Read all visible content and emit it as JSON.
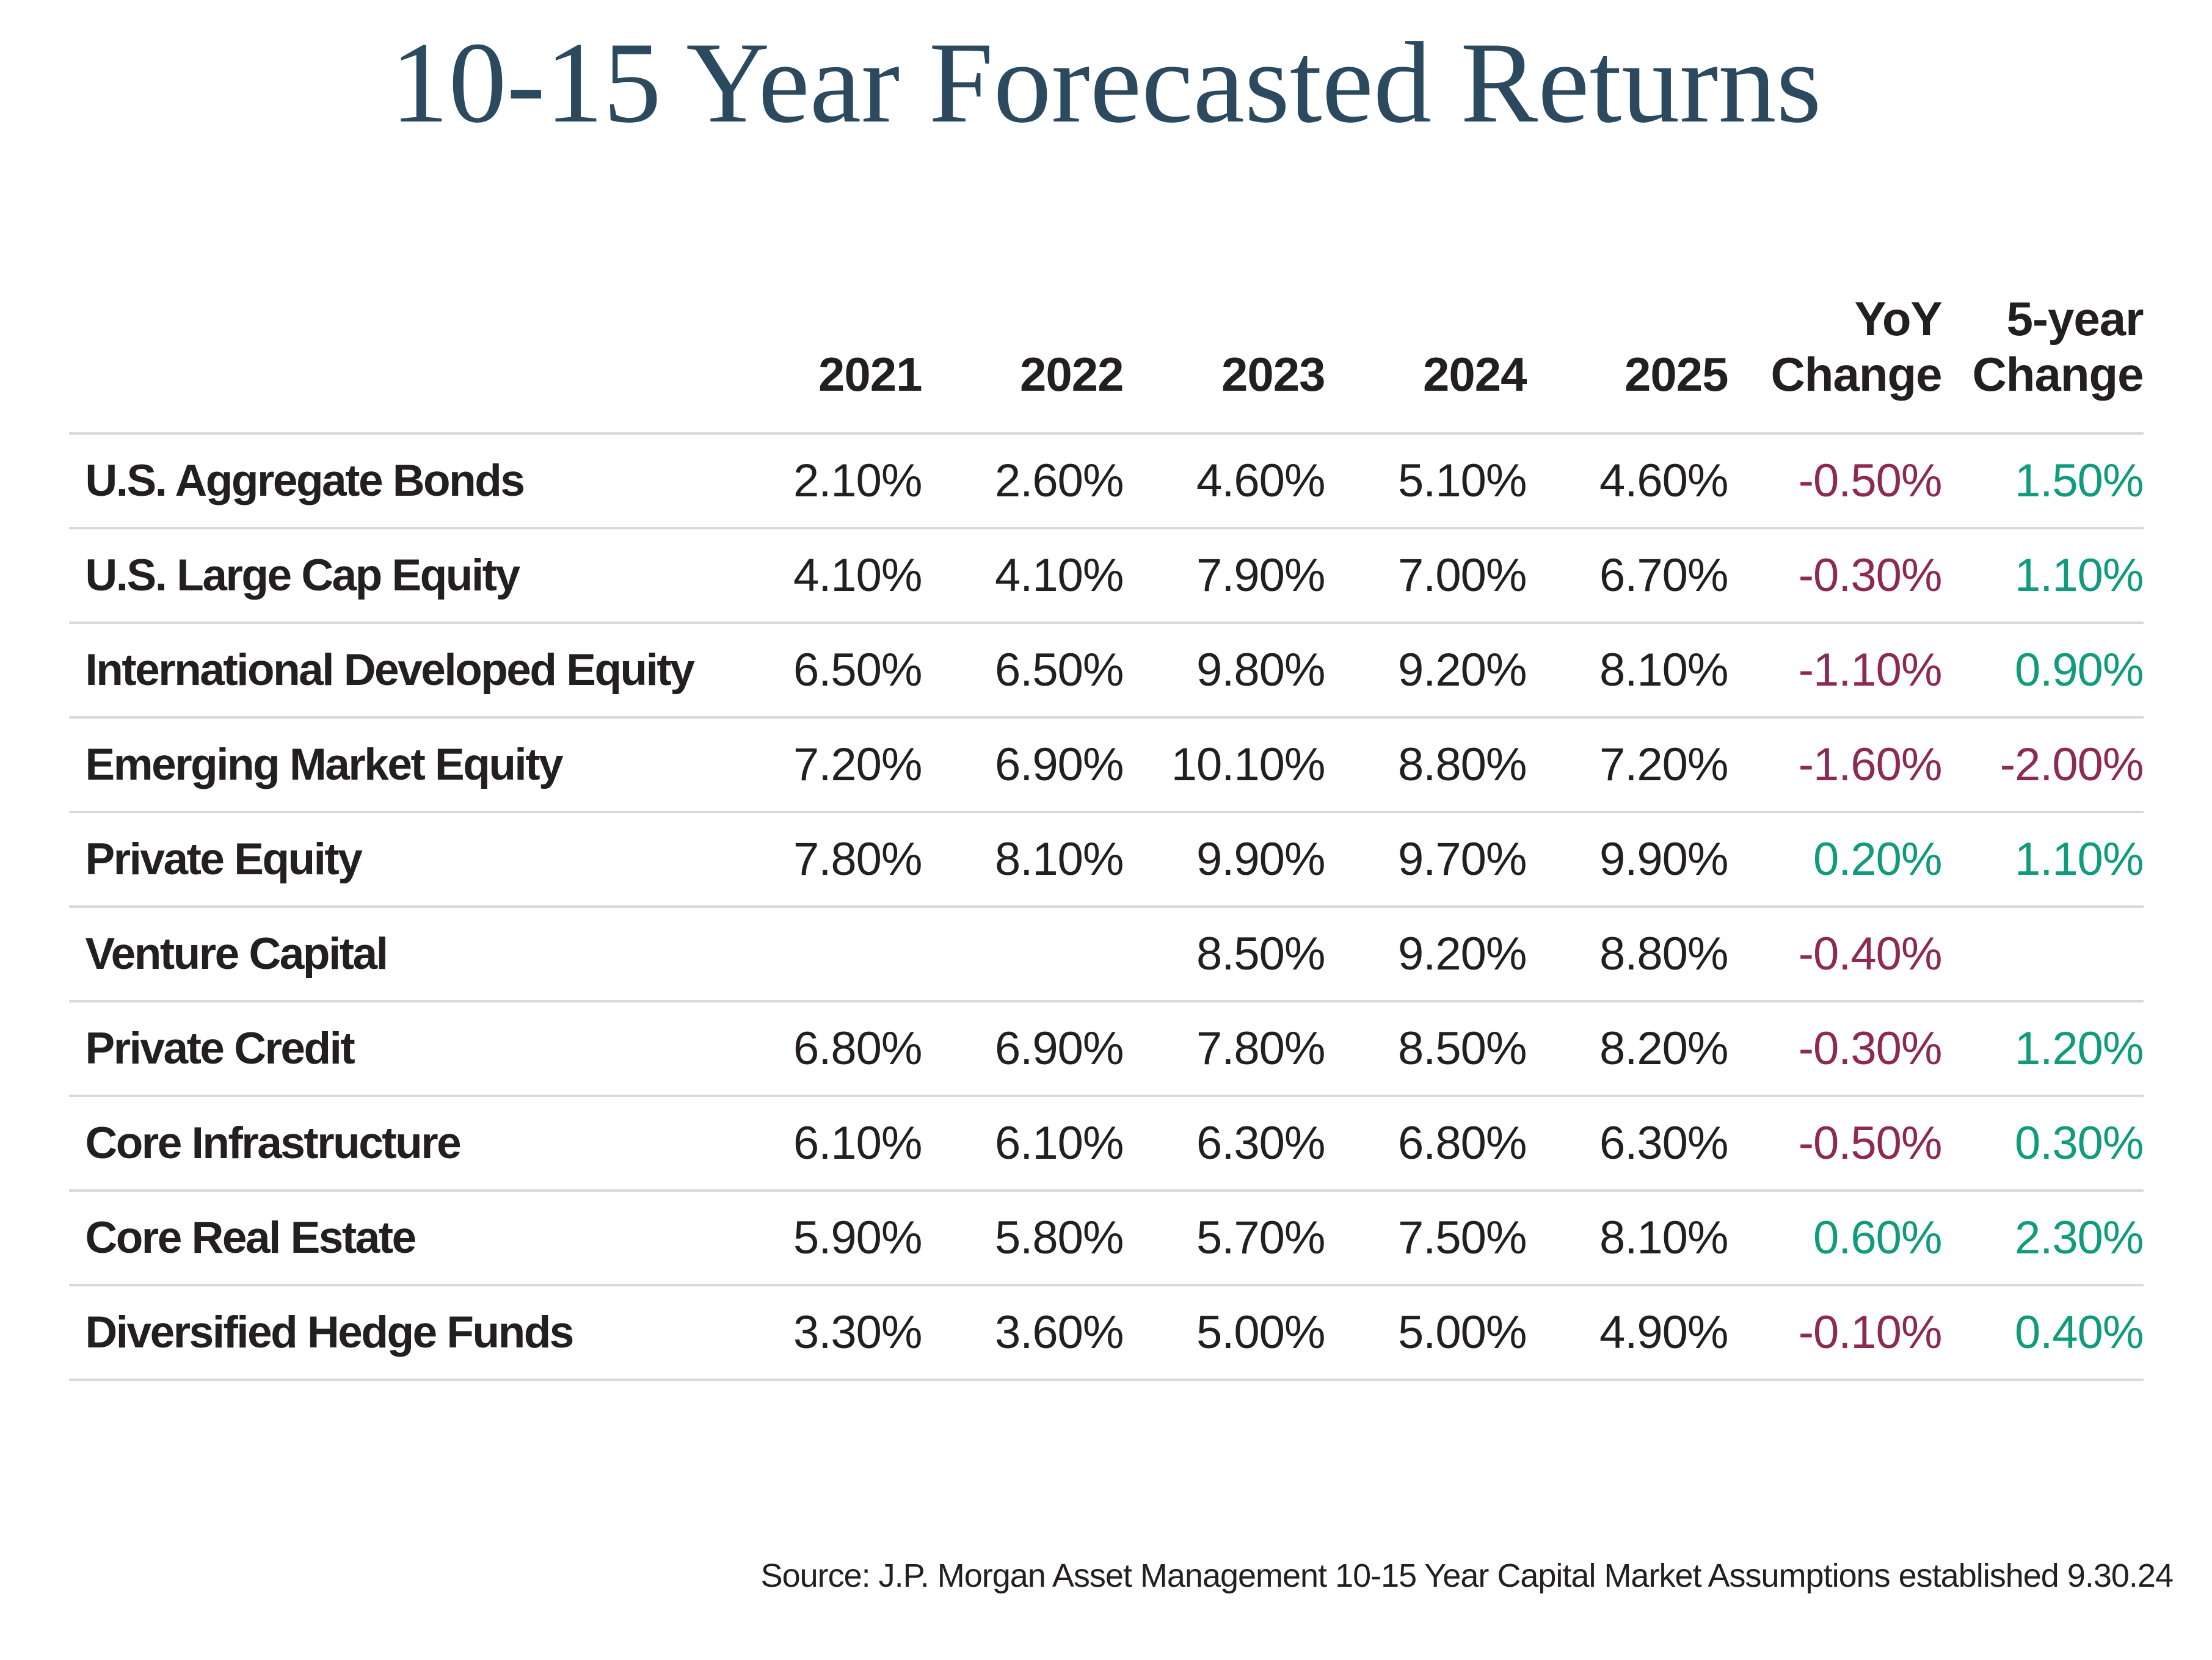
{
  "title": "10-15 Year Forecasted Returns",
  "header": {
    "asset": "",
    "yoy_line1": "YoY",
    "yoy_line2": "Change",
    "fiveyear_line1": "5-year",
    "fiveyear_line2": "Change"
  },
  "source": "Source: J.P. Morgan Asset Management 10-15 Year Capital Market Assumptions established 9.30.24",
  "colors": {
    "title": "#2c4a5f",
    "text": "#231f20",
    "positive": "#0f9b7c",
    "negative": "#8d2a54",
    "divider": "#d9d9d9"
  },
  "chart_data": {
    "type": "table",
    "title": "10-15 Year Forecasted Returns",
    "columns": [
      "2021",
      "2022",
      "2023",
      "2024",
      "2025",
      "YoY Change",
      "5-year Change"
    ],
    "rows": [
      {
        "label": "U.S. Aggregate Bonds",
        "values": [
          "2.10%",
          "2.60%",
          "4.60%",
          "5.10%",
          "4.60%",
          "-0.50%",
          "1.50%"
        ]
      },
      {
        "label": "U.S. Large Cap Equity",
        "values": [
          "4.10%",
          "4.10%",
          "7.90%",
          "7.00%",
          "6.70%",
          "-0.30%",
          "1.10%"
        ]
      },
      {
        "label": "International Developed Equity",
        "values": [
          "6.50%",
          "6.50%",
          "9.80%",
          "9.20%",
          "8.10%",
          "-1.10%",
          "0.90%"
        ]
      },
      {
        "label": "Emerging Market Equity",
        "values": [
          "7.20%",
          "6.90%",
          "10.10%",
          "8.80%",
          "7.20%",
          "-1.60%",
          "-2.00%"
        ]
      },
      {
        "label": "Private Equity",
        "values": [
          "7.80%",
          "8.10%",
          "9.90%",
          "9.70%",
          "9.90%",
          "0.20%",
          "1.10%"
        ]
      },
      {
        "label": "Venture Capital",
        "values": [
          "",
          "",
          "8.50%",
          "9.20%",
          "8.80%",
          "-0.40%",
          ""
        ]
      },
      {
        "label": "Private Credit",
        "values": [
          "6.80%",
          "6.90%",
          "7.80%",
          "8.50%",
          "8.20%",
          "-0.30%",
          "1.20%"
        ]
      },
      {
        "label": "Core Infrastructure",
        "values": [
          "6.10%",
          "6.10%",
          "6.30%",
          "6.80%",
          "6.30%",
          "-0.50%",
          "0.30%"
        ]
      },
      {
        "label": "Core Real Estate",
        "values": [
          "5.90%",
          "5.80%",
          "5.70%",
          "7.50%",
          "8.10%",
          "0.60%",
          "2.30%"
        ]
      },
      {
        "label": "Diversified Hedge Funds",
        "values": [
          "3.30%",
          "3.60%",
          "5.00%",
          "5.00%",
          "4.90%",
          "-0.10%",
          "0.40%"
        ]
      }
    ],
    "source": "Source: J.P. Morgan Asset Management 10-15 Year Capital Market Assumptions established 9.30.24"
  }
}
